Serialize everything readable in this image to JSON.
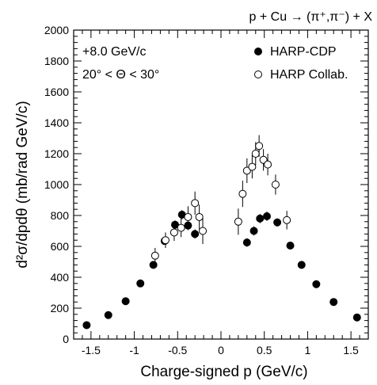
{
  "chart_data": {
    "type": "scatter",
    "title": "p + Cu → (π⁺,π⁻) + X",
    "xlabel": "Charge-signed p (GeV/c)",
    "ylabel": "d²σ/dpdθ (mb/rad GeV/c)",
    "annotations": [
      "+8.0 GeV/c",
      "20° < Θ < 30°"
    ],
    "xlim": [
      -1.7,
      1.7
    ],
    "ylim": [
      0,
      2000
    ],
    "xticks": [
      -1.5,
      -1,
      -0.5,
      0,
      0.5,
      1,
      1.5
    ],
    "xtick_labels": [
      "-1.5",
      "-1",
      "-0.5",
      "0",
      "0.5",
      "1",
      "1.5"
    ],
    "yticks": [
      0,
      200,
      400,
      600,
      800,
      1000,
      1200,
      1400,
      1600,
      1800,
      2000
    ],
    "ytick_labels": [
      "0",
      "200",
      "400",
      "600",
      "800",
      "1000",
      "1200",
      "1400",
      "1600",
      "1800",
      "2000"
    ],
    "legend_position": "top-right",
    "grid": false,
    "series": [
      {
        "name": "HARP-CDP",
        "marker": "filled-circle",
        "color": "#000000",
        "points": [
          {
            "x": -1.55,
            "y": 90,
            "err": 8
          },
          {
            "x": -1.3,
            "y": 155,
            "err": 10
          },
          {
            "x": -1.1,
            "y": 245,
            "err": 12
          },
          {
            "x": -0.93,
            "y": 360,
            "err": 14
          },
          {
            "x": -0.78,
            "y": 480,
            "err": 18
          },
          {
            "x": -0.65,
            "y": 635,
            "err": 22
          },
          {
            "x": -0.53,
            "y": 740,
            "err": 28
          },
          {
            "x": -0.45,
            "y": 805,
            "err": 30
          },
          {
            "x": -0.38,
            "y": 735,
            "err": 30
          },
          {
            "x": -0.3,
            "y": 680,
            "err": 30
          },
          {
            "x": 0.3,
            "y": 625,
            "err": 28
          },
          {
            "x": 0.38,
            "y": 700,
            "err": 30
          },
          {
            "x": 0.45,
            "y": 780,
            "err": 30
          },
          {
            "x": 0.53,
            "y": 795,
            "err": 30
          },
          {
            "x": 0.65,
            "y": 755,
            "err": 26
          },
          {
            "x": 0.8,
            "y": 605,
            "err": 22
          },
          {
            "x": 0.93,
            "y": 480,
            "err": 18
          },
          {
            "x": 1.1,
            "y": 355,
            "err": 14
          },
          {
            "x": 1.3,
            "y": 240,
            "err": 12
          },
          {
            "x": 1.57,
            "y": 140,
            "err": 10
          }
        ]
      },
      {
        "name": "HARP Collab.",
        "marker": "open-circle",
        "color": "#000000",
        "points": [
          {
            "x": -0.76,
            "y": 540,
            "err": 50
          },
          {
            "x": -0.64,
            "y": 640,
            "err": 50
          },
          {
            "x": -0.54,
            "y": 690,
            "err": 55
          },
          {
            "x": -0.46,
            "y": 720,
            "err": 60
          },
          {
            "x": -0.38,
            "y": 790,
            "err": 70
          },
          {
            "x": -0.3,
            "y": 880,
            "err": 75
          },
          {
            "x": -0.25,
            "y": 790,
            "err": 80
          },
          {
            "x": -0.21,
            "y": 700,
            "err": 85
          },
          {
            "x": 0.2,
            "y": 760,
            "err": 85
          },
          {
            "x": 0.25,
            "y": 940,
            "err": 85
          },
          {
            "x": 0.3,
            "y": 1090,
            "err": 80
          },
          {
            "x": 0.36,
            "y": 1115,
            "err": 75
          },
          {
            "x": 0.4,
            "y": 1200,
            "err": 75
          },
          {
            "x": 0.44,
            "y": 1250,
            "err": 70
          },
          {
            "x": 0.49,
            "y": 1160,
            "err": 70
          },
          {
            "x": 0.54,
            "y": 1130,
            "err": 70
          },
          {
            "x": 0.63,
            "y": 1000,
            "err": 65
          },
          {
            "x": 0.76,
            "y": 770,
            "err": 60
          }
        ]
      }
    ]
  }
}
